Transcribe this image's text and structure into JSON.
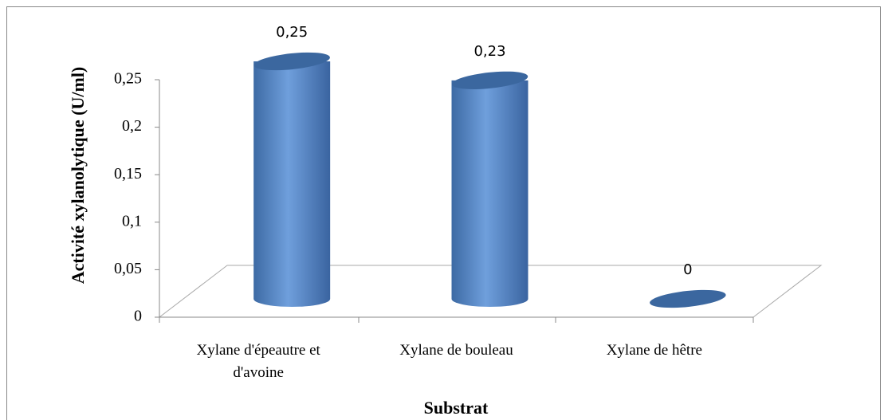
{
  "chart_data": {
    "type": "bar3d",
    "categories": [
      "Xylane d'épeautre et d'avoine",
      "Xylane de bouleau",
      "Xylane de hêtre"
    ],
    "values": [
      0.25,
      0.23,
      0
    ],
    "value_labels": [
      "0,25",
      "0,23",
      "0"
    ],
    "color": "#4f81bd",
    "ylim": [
      0,
      0.25
    ],
    "yticks": [
      0,
      {
        "value": 0.05,
        "label": "0,05"
      },
      {
        "value": 0.1,
        "label": "0,1"
      },
      {
        "value": 0.15,
        "label": "0,15"
      },
      {
        "value": 0.2,
        "label": "0,2"
      },
      {
        "value": 0.25,
        "label": "0,25"
      }
    ],
    "ylabel": "Activité xylanolytique (U/ml)",
    "xlabel": "Substrat"
  }
}
